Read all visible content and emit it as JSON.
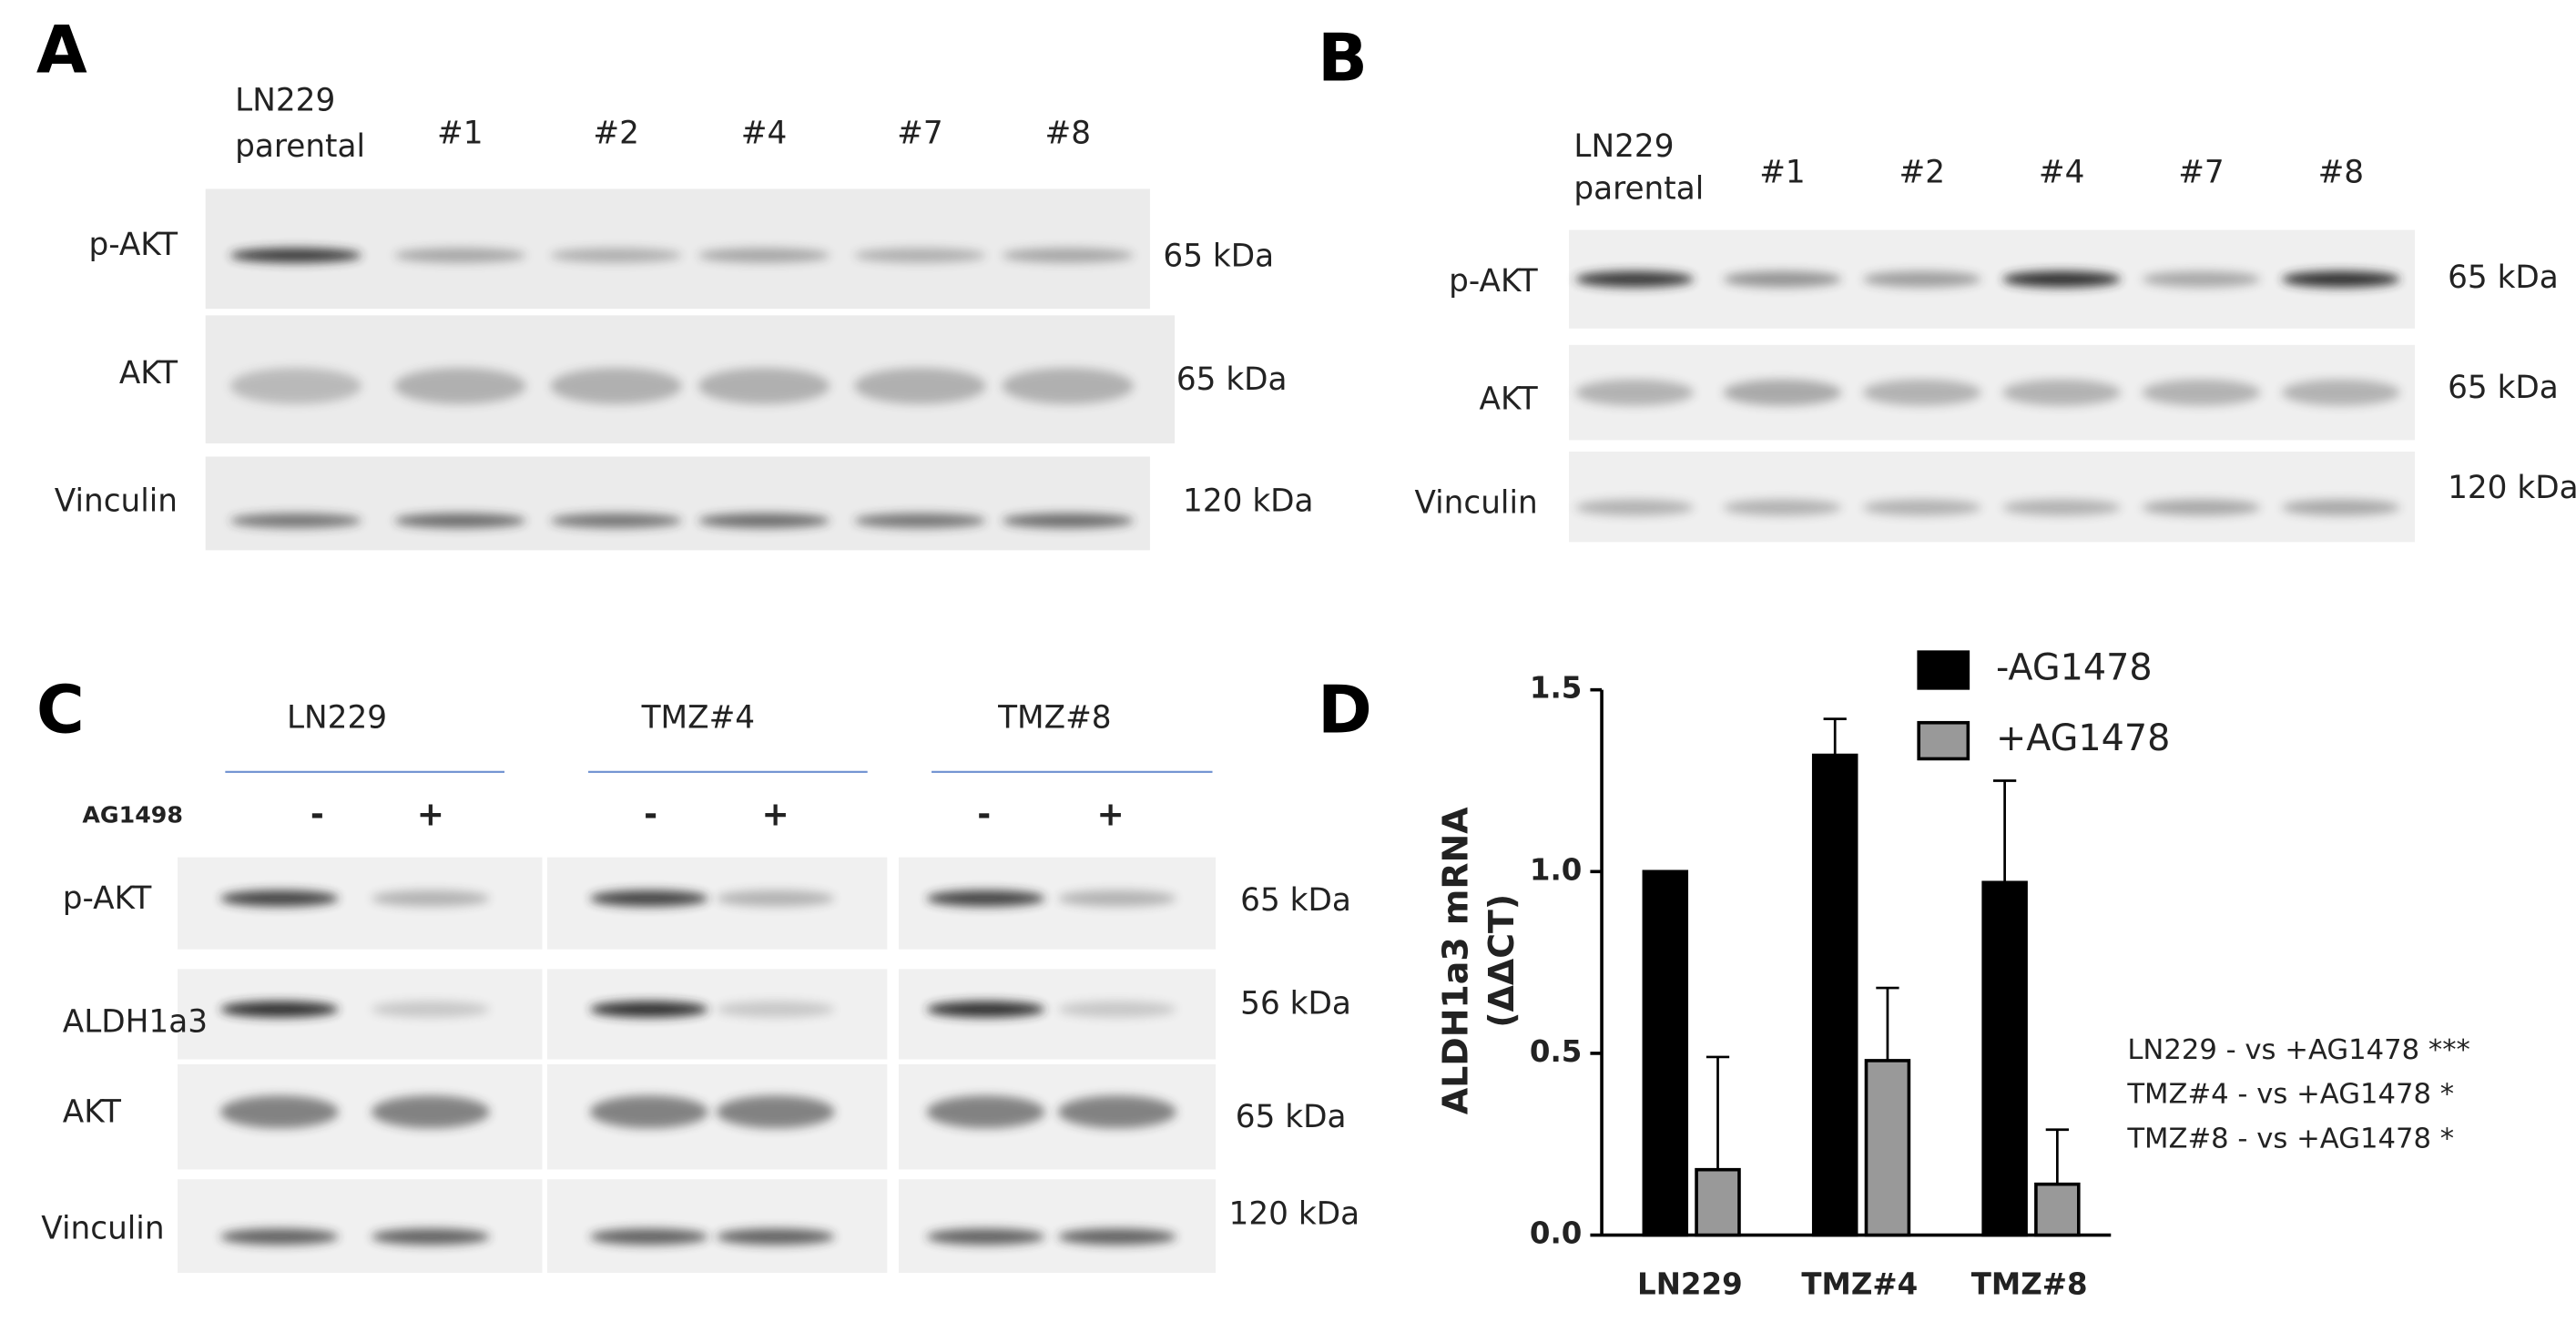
{
  "panel_a": {
    "label": "A",
    "lanes": [
      [
        "LN229",
        "parental"
      ],
      "#1",
      "#2",
      "#4",
      "#7",
      "#8"
    ],
    "rows": [
      "p-AKT",
      "AKT",
      "Vinculin"
    ],
    "sizes": [
      "65 kDa",
      "65 kDa",
      "120 kDa"
    ]
  },
  "panel_b": {
    "label": "B",
    "lanes": [
      [
        "LN229",
        "parental"
      ],
      "#1",
      "#2",
      "#4",
      "#7",
      "#8"
    ],
    "rows": [
      "p-AKT",
      "AKT",
      "Vinculin"
    ],
    "sizes": [
      "65 kDa",
      "65 kDa",
      "120 kDa"
    ]
  },
  "panel_c": {
    "label": "C",
    "groups": [
      "LN229",
      "TMZ#4",
      "TMZ#8"
    ],
    "treatment": "AG1498",
    "signs": [
      "-",
      "+",
      "-",
      "+",
      "-",
      "+"
    ],
    "rows": [
      "p-AKT",
      "ALDH1a3",
      "AKT",
      "Vinculin"
    ],
    "sizes": [
      "65 kDa",
      "56 kDa",
      "65 kDa",
      "120 kDa"
    ]
  },
  "chart_data": {
    "type": "bar",
    "panel_label": "D",
    "y_label": [
      "ALDH1a3 mRNA",
      "(ΔΔCT)"
    ],
    "categories": [
      "LN229",
      "TMZ#4",
      "TMZ#8"
    ],
    "series": [
      {
        "name": "-AG1478",
        "color": "#000000",
        "values": [
          1.0,
          1.32,
          0.97
        ],
        "errors": [
          0,
          0.1,
          0.28
        ]
      },
      {
        "name": "+AG1478",
        "color": "#999999",
        "values": [
          0.18,
          0.48,
          0.14
        ],
        "errors": [
          0.31,
          0.2,
          0.15
        ]
      }
    ],
    "ylim": [
      0,
      1.5
    ],
    "yticks": [
      {
        "value": 0,
        "label": "0.0"
      },
      0.5,
      {
        "value": 1,
        "label": "1.0"
      },
      1.5
    ],
    "annotations": [
      "LN229 - vs +AG1478 ***",
      "TMZ#4  - vs +AG1478 *",
      "TMZ#8  - vs +AG1478 *"
    ]
  }
}
